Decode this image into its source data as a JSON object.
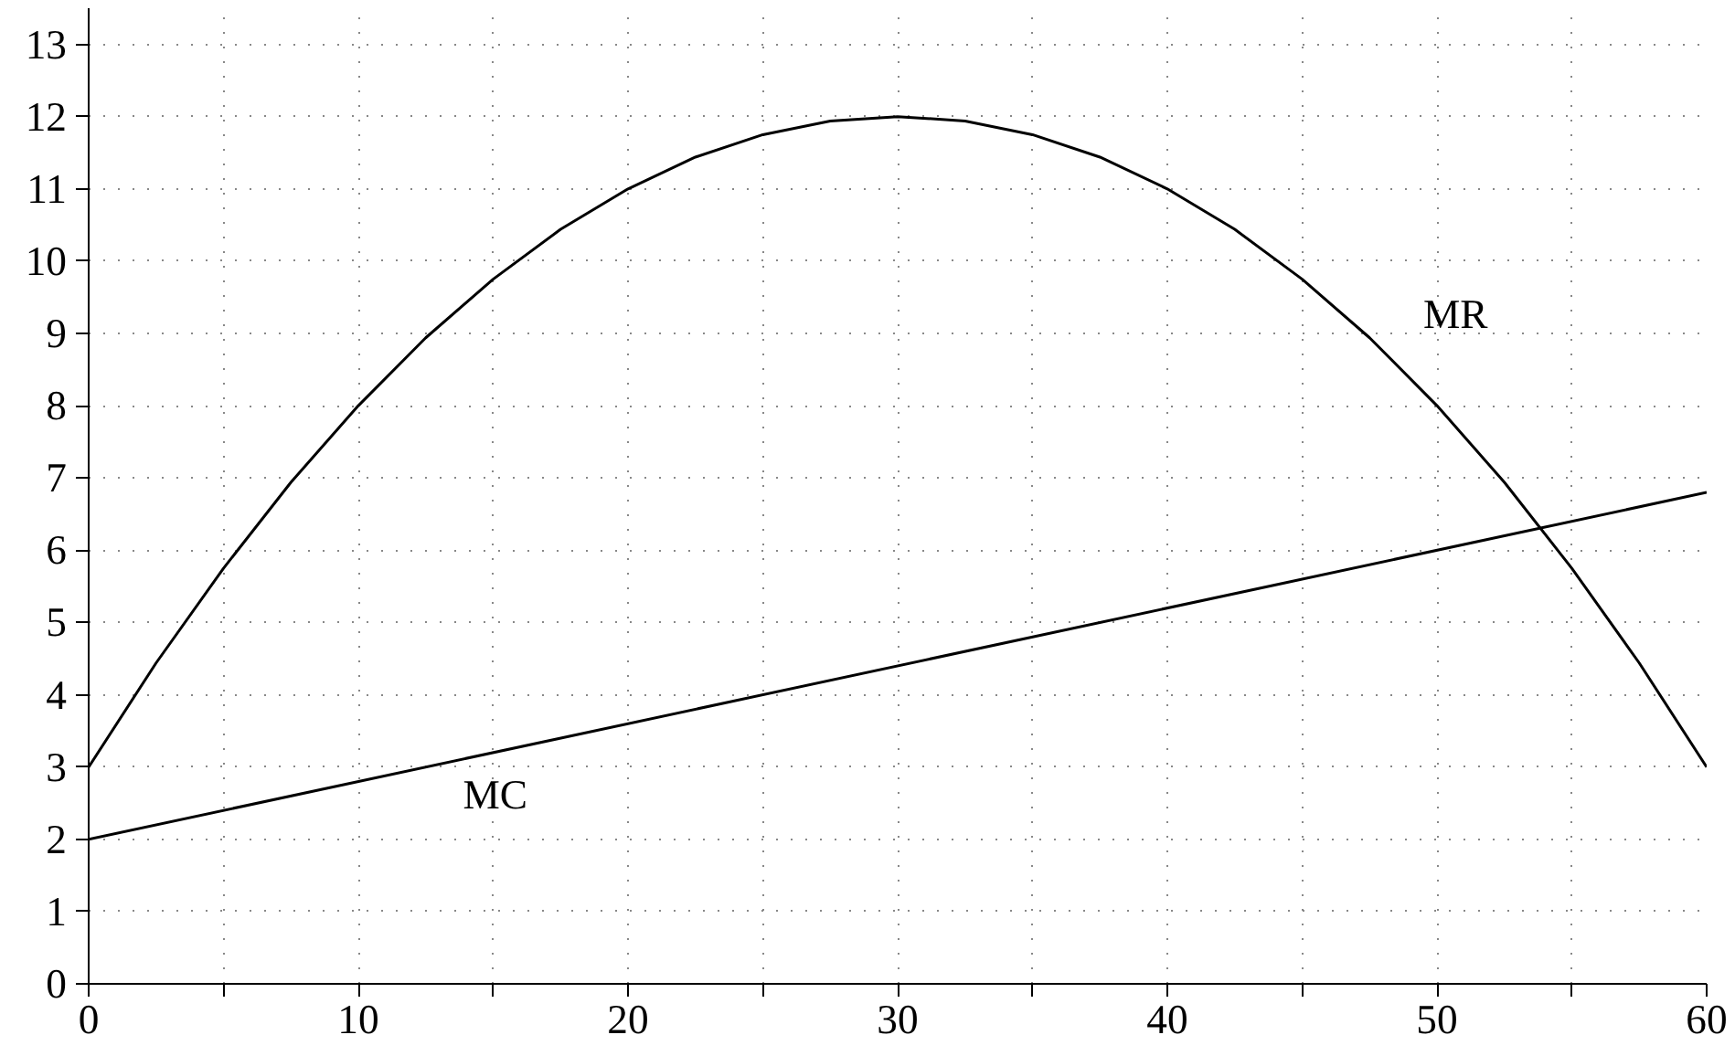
{
  "chart_data": {
    "type": "line",
    "xlim": [
      0,
      60
    ],
    "ylim": [
      0,
      13.5
    ],
    "xticks": [
      0,
      {
        "value": 5,
        "label": null
      },
      10,
      {
        "value": 15,
        "label": null
      },
      20,
      {
        "value": 25,
        "label": null
      },
      30,
      {
        "value": 35,
        "label": null
      },
      40,
      {
        "value": 45,
        "label": null
      },
      50,
      {
        "value": 55,
        "label": null
      },
      60
    ],
    "yticks": [
      0,
      1,
      2,
      3,
      4,
      5,
      6,
      7,
      8,
      9,
      10,
      11,
      12,
      13
    ],
    "grid": true,
    "marker": "none",
    "line_style": "solid",
    "series": [
      {
        "name": "MR",
        "color": "#000000",
        "x": [
          0,
          2.5,
          5,
          7.5,
          10,
          12.5,
          15,
          17.5,
          20,
          22.5,
          25,
          27.5,
          30,
          32.5,
          35,
          37.5,
          40,
          42.5,
          45,
          47.5,
          50,
          52.5,
          55,
          57.5,
          60
        ],
        "values": [
          3,
          4.44,
          5.75,
          6.94,
          8,
          8.94,
          9.75,
          10.44,
          11,
          11.44,
          11.75,
          11.94,
          12,
          11.94,
          11.75,
          11.44,
          11,
          10.44,
          9.75,
          8.94,
          8,
          6.94,
          5.75,
          4.44,
          3
        ]
      },
      {
        "name": "MC",
        "color": "#000000",
        "x": [
          0,
          60
        ],
        "values": [
          2,
          6.8
        ]
      }
    ]
  }
}
